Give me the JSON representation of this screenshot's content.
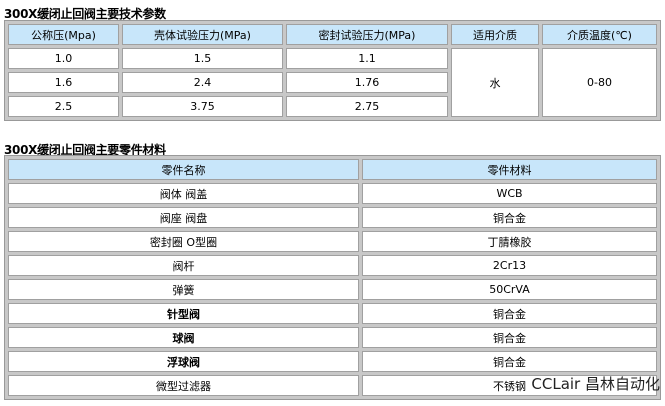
{
  "specs": {
    "title": "300X缓闭止回阀主要技术参数",
    "headers": [
      "公称压(Mpa)",
      "壳体试验压力(MPa)",
      "密封试验压力(MPa)",
      "适用介质",
      "介质温度(℃)"
    ],
    "rows": [
      [
        "1.0",
        "1.5",
        "1.1"
      ],
      [
        "1.6",
        "2.4",
        "1.76"
      ],
      [
        "2.5",
        "3.75",
        "2.75"
      ]
    ],
    "medium": "水",
    "temperature": "0-80"
  },
  "materials": {
    "title": "300X缓闭止回阀主要零件材料",
    "headers": [
      "零件名称",
      "零件材料"
    ],
    "rows": [
      [
        "阀体 阀盖",
        "WCB"
      ],
      [
        "阀座 阀盘",
        "铜合金"
      ],
      [
        "密封圈 O型圈",
        "丁腈橡胶"
      ],
      [
        "阀杆",
        "2Cr13"
      ],
      [
        "弹簧",
        "50CrVA"
      ],
      [
        "针型阀",
        "铜合金"
      ],
      [
        "球阀",
        "铜合金"
      ],
      [
        "浮球阀",
        "铜合金"
      ],
      [
        "微型过滤器",
        "不锈钢"
      ]
    ]
  },
  "watermark": "CCLair 昌林自动化"
}
